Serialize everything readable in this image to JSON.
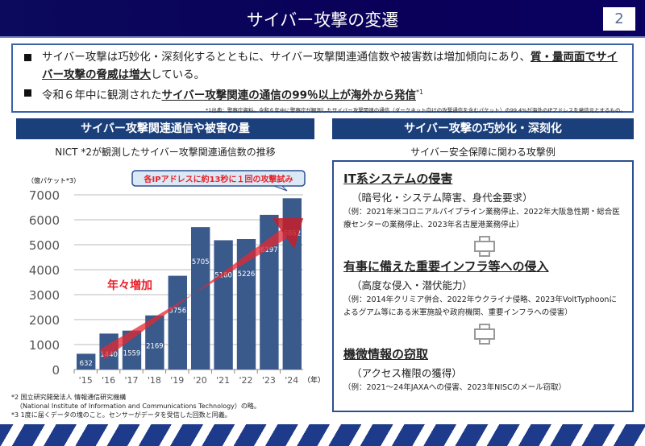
{
  "header": {
    "title": "サイバー攻撃の変遷",
    "page": "2"
  },
  "summary": {
    "b1_pre": "サイバー攻撃は巧妙化・深刻化するとともに、サイバー攻撃関連通信数や被害数は増加傾向にあり、",
    "b1_bold": "質・量両面でサイバー攻撃の脅威は増大",
    "b1_post": "している。",
    "b2_pre": "令和６年中に観測された",
    "b2_bold": "サイバー攻撃関連の通信の99％以上が海外から発信",
    "b2_sup": "*1",
    "note": "*1出典：警察庁資料。令和６年中に警察庁が観測したサイバー攻撃関連の通信（ダークネット向けの攻撃通信を含むパケット）の99.4%が海外のIPアドレスを発信元とするもの。"
  },
  "left": {
    "heading": "サイバー攻撃関連通信や被害の量",
    "subtitle": "NICT *2が観測したサイバー攻撃関連通信数の推移"
  },
  "right": {
    "heading": "サイバー攻撃の巧妙化・深刻化",
    "subtitle": "サイバー安全保障に関わる攻撃例",
    "items": [
      {
        "title": "IT系システムの侵害",
        "paren": "（暗号化・システム障害、身代金要求）",
        "example": "（例：2021年米コロニアルパイプライン業務停止、2022年大阪急性期・総合医療センターの業務停止、2023年名古屋港業務停止）"
      },
      {
        "title": "有事に備えた重要インフラ等への侵入",
        "paren": "（高度な侵入・潜伏能力）",
        "example": "（例：2014年クリミア併合、2022年ウクライナ侵略、2023年VoltTyphoonによるグアム等にある米軍施設や政府機関、重要インフラへの侵害）"
      },
      {
        "title": "機微情報の窃取",
        "paren": "（アクセス権限の獲得）",
        "example": "（例：2021～24年JAXAへの侵害、2023年NISCのメール窃取）"
      }
    ]
  },
  "chart_data": {
    "type": "bar",
    "categories": [
      "'15",
      "'16",
      "'17",
      "'18",
      "'19",
      "'20",
      "'21",
      "'22",
      "'23",
      "'24"
    ],
    "values": [
      632,
      1440,
      1559,
      2169,
      3756,
      5705,
      5180,
      5226,
      6197,
      6862
    ],
    "ylabel": "（億パケット*3）",
    "xlabel": "（年）",
    "ylim": [
      0,
      7000
    ],
    "yticks": [
      0,
      1000,
      2000,
      3000,
      4000,
      5000,
      6000,
      7000
    ],
    "grid": true,
    "bar_color": "#3a5a8c",
    "arrow_label": "年々増加",
    "callout": "各IPアドレスに約13秒に１回の攻撃試み"
  },
  "footnotes": [
    "*2 国立研究開発法人 情報通信研究機構",
    "（National Institute of Information and Communications Technology）の略。",
    "*3  1度に届くデータの塊のこと。センサーがデータを受信した回数と同義。"
  ]
}
